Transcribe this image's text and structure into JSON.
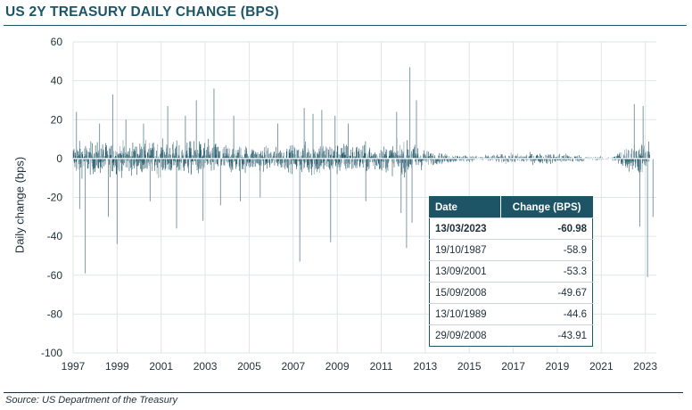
{
  "page": {
    "title": "US 2Y TREASURY DAILY CHANGE (BPS)",
    "source": "Source: US Department of the Treasury"
  },
  "colors": {
    "brand": "#1d5566",
    "series_dark": "#1d5566",
    "series_light": "#7d9aa6"
  },
  "table": {
    "headers": [
      "Date",
      "Change (BPS)"
    ],
    "rows": [
      {
        "date": "13/03/2023",
        "value": "-60.98",
        "highlight": true
      },
      {
        "date": "19/10/1987",
        "value": "-58.9",
        "highlight": false
      },
      {
        "date": "13/09/2001",
        "value": "-53.3",
        "highlight": false
      },
      {
        "date": "15/09/2008",
        "value": "-49.67",
        "highlight": false
      },
      {
        "date": "13/10/1989",
        "value": "-44.6",
        "highlight": false
      },
      {
        "date": "29/09/2008",
        "value": "-43.91",
        "highlight": false
      }
    ]
  },
  "chart_data": {
    "type": "bar",
    "title": "US 2Y TREASURY DAILY CHANGE (BPS)",
    "xlabel": "",
    "ylabel": "Daily change (bps)",
    "xlim": [
      1997,
      2023.5
    ],
    "ylim": [
      -100,
      60
    ],
    "yticks": [
      60,
      40,
      20,
      0,
      -20,
      -40,
      -60,
      -80,
      -100
    ],
    "xticks": [
      "1997",
      "1999",
      "2001",
      "2003",
      "2005",
      "2007",
      "2009",
      "2011",
      "2013",
      "2015",
      "2017",
      "2019",
      "2021",
      "2023"
    ],
    "grid": true,
    "legend": "none",
    "volatility_profile": [
      {
        "x": 1997.0,
        "amp": 9
      },
      {
        "x": 1999.0,
        "amp": 8.5
      },
      {
        "x": 2001.0,
        "amp": 9
      },
      {
        "x": 2003.0,
        "amp": 9.5
      },
      {
        "x": 2005.0,
        "amp": 7
      },
      {
        "x": 2006.5,
        "amp": 6
      },
      {
        "x": 2008.0,
        "amp": 10
      },
      {
        "x": 2010.0,
        "amp": 8
      },
      {
        "x": 2011.0,
        "amp": 7
      },
      {
        "x": 2012.3,
        "amp": 9
      },
      {
        "x": 2013.3,
        "amp": 3.5
      },
      {
        "x": 2014.5,
        "amp": 2
      },
      {
        "x": 2015.5,
        "amp": 1.5
      },
      {
        "x": 2016.5,
        "amp": 2.5
      },
      {
        "x": 2019.0,
        "amp": 3
      },
      {
        "x": 2020.0,
        "amp": 2
      },
      {
        "x": 2020.5,
        "amp": 1
      },
      {
        "x": 2021.5,
        "amp": 1
      },
      {
        "x": 2022.0,
        "amp": 6
      },
      {
        "x": 2022.8,
        "amp": 9
      },
      {
        "x": 2023.5,
        "amp": 9
      }
    ],
    "spikes": [
      {
        "x": 1997.15,
        "y": 24
      },
      {
        "x": 1997.3,
        "y": -26
      },
      {
        "x": 1997.55,
        "y": -59
      },
      {
        "x": 1998.2,
        "y": 18
      },
      {
        "x": 1998.6,
        "y": -30
      },
      {
        "x": 1998.8,
        "y": 33
      },
      {
        "x": 1999.0,
        "y": -44
      },
      {
        "x": 1999.4,
        "y": 20
      },
      {
        "x": 2000.2,
        "y": 18
      },
      {
        "x": 2000.5,
        "y": -22
      },
      {
        "x": 2001.3,
        "y": 27
      },
      {
        "x": 2001.7,
        "y": -36
      },
      {
        "x": 2002.1,
        "y": 22
      },
      {
        "x": 2002.6,
        "y": 30
      },
      {
        "x": 2002.9,
        "y": -32
      },
      {
        "x": 2003.4,
        "y": 36
      },
      {
        "x": 2003.7,
        "y": -24
      },
      {
        "x": 2004.3,
        "y": 22
      },
      {
        "x": 2004.6,
        "y": -22
      },
      {
        "x": 2005.5,
        "y": -20
      },
      {
        "x": 2006.3,
        "y": 18
      },
      {
        "x": 2007.3,
        "y": -53
      },
      {
        "x": 2007.5,
        "y": 26
      },
      {
        "x": 2007.9,
        "y": 23
      },
      {
        "x": 2008.3,
        "y": 25
      },
      {
        "x": 2008.7,
        "y": -43
      },
      {
        "x": 2008.9,
        "y": 22
      },
      {
        "x": 2009.5,
        "y": 18
      },
      {
        "x": 2010.3,
        "y": -22
      },
      {
        "x": 2011.7,
        "y": 24
      },
      {
        "x": 2011.9,
        "y": -28
      },
      {
        "x": 2012.15,
        "y": -46
      },
      {
        "x": 2012.3,
        "y": 47
      },
      {
        "x": 2012.4,
        "y": -33
      },
      {
        "x": 2012.6,
        "y": 30
      },
      {
        "x": 2022.5,
        "y": 28
      },
      {
        "x": 2022.75,
        "y": -35
      },
      {
        "x": 2022.9,
        "y": 27
      },
      {
        "x": 2023.1,
        "y": -61
      },
      {
        "x": 2023.35,
        "y": -30
      }
    ]
  }
}
